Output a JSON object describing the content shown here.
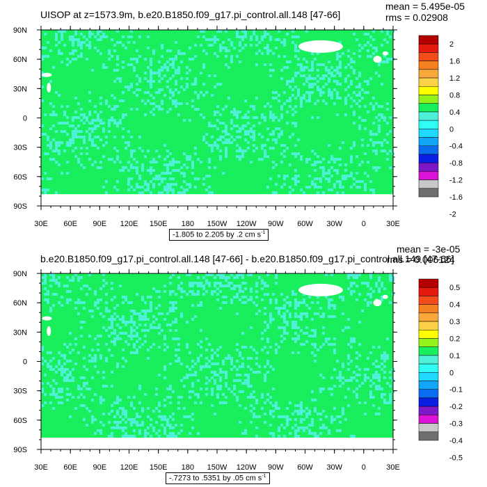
{
  "colors": {
    "land_missing": "#ffffff",
    "dominant": "#19ee5d",
    "secondary": "#4ff0d8",
    "frame": "#000000"
  },
  "chart_data": [
    {
      "type": "heatmap",
      "title": "UISOP at z=1573.9m, b.e20.B1850.f09_g17.pi_control.all.148 [47-66]",
      "stats": {
        "mean": "mean = 5.495e-05",
        "rms": "rms = 0.02908"
      },
      "x_ticks": [
        "30E",
        "60E",
        "90E",
        "120E",
        "150E",
        "180",
        "150W",
        "120W",
        "90W",
        "60W",
        "30W",
        "0",
        "30E"
      ],
      "y_ticks": [
        "90N",
        "60N",
        "30N",
        "0",
        "30S",
        "60S",
        "90S"
      ],
      "x_range": [
        30,
        390
      ],
      "y_range": [
        -90,
        90
      ],
      "range_label": "-1.805 to 2.205 by .2 cm s",
      "range_unit_exp": "-1",
      "colorbar": {
        "labels": [
          "2",
          "1.6",
          "1.2",
          "0.8",
          "0.4",
          "0",
          "-0.4",
          "-0.8",
          "-1.2",
          "-1.6",
          "-2"
        ],
        "colors": [
          "#b30000",
          "#e6190d",
          "#f24d1a",
          "#f5801f",
          "#f9a83a",
          "#fbd148",
          "#ffff00",
          "#93f21a",
          "#19ee5d",
          "#4ff0d8",
          "#2ffef5",
          "#1fd9ff",
          "#11a6f7",
          "#0a6df0",
          "#0a1fe6",
          "#7d18c9",
          "#da13d6",
          "#c8c8c8",
          "#6f6f6f"
        ]
      }
    },
    {
      "type": "heatmap",
      "title": "b.e20.B1850.f09_g17.pi_control.all.148 [47-66] - b.e20.B1850.f09_g17.pi_control.all.149 [47-66]",
      "stats": {
        "mean": "mean = -3e-05",
        "rms": "rms = 0.006124"
      },
      "x_ticks": [
        "30E",
        "60E",
        "90E",
        "120E",
        "150E",
        "180",
        "150W",
        "120W",
        "90W",
        "60W",
        "30W",
        "0",
        "30E"
      ],
      "y_ticks": [
        "90N",
        "60N",
        "30N",
        "0",
        "30S",
        "60S",
        "90S"
      ],
      "x_range": [
        30,
        390
      ],
      "y_range": [
        -90,
        90
      ],
      "range_label": "-.7273 to .5351 by .05 cm s",
      "range_unit_exp": "-1",
      "colorbar": {
        "labels": [
          "0.5",
          "0.4",
          "0.3",
          "0.2",
          "0.1",
          "0",
          "-0.1",
          "-0.2",
          "-0.3",
          "-0.4",
          "-0.5"
        ],
        "colors": [
          "#b30000",
          "#e6190d",
          "#f24d1a",
          "#f5801f",
          "#f9a83a",
          "#fbd148",
          "#ffff00",
          "#93f21a",
          "#19ee5d",
          "#4ff0d8",
          "#2ffef5",
          "#1fd9ff",
          "#11a6f7",
          "#0a6df0",
          "#0a1fe6",
          "#7d18c9",
          "#da13d6",
          "#c8c8c8",
          "#6f6f6f"
        ]
      }
    }
  ]
}
